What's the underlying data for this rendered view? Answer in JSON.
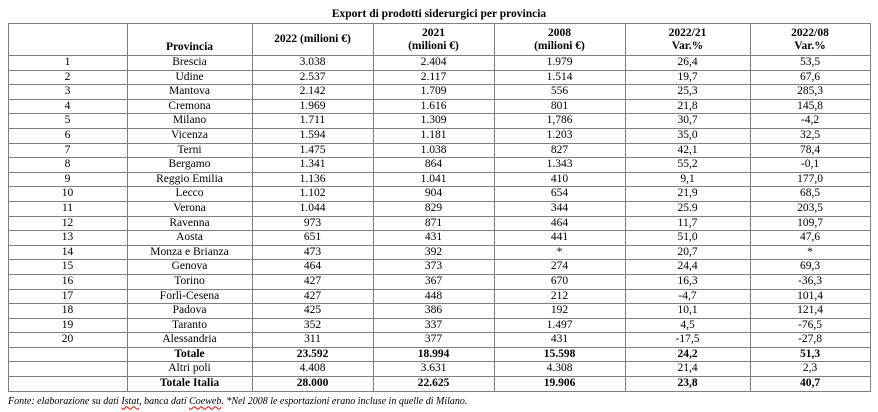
{
  "title": "Export di prodotti siderurgici per provincia",
  "colors": {
    "background": "#ffffff",
    "text": "#000000",
    "grid_border": "#808080",
    "spellcheck_underline": "#ff0000"
  },
  "table": {
    "headers": {
      "rank": "",
      "provincia": "Provincia",
      "y2022": "2022 (milioni €)",
      "y2021": [
        "2021",
        "(milioni €)"
      ],
      "y2008": [
        "2008",
        "(milioni €)"
      ],
      "var_2022_21": [
        "2022/21",
        "Var.%"
      ],
      "var_2022_08": [
        "2022/08",
        "Var.%"
      ]
    },
    "rows": [
      {
        "rank": "1",
        "provincia": "Brescia",
        "v2022": "3.038",
        "v2021": "2.404",
        "v2008": "1.979",
        "var2221": "26,4",
        "var2208": "53,5"
      },
      {
        "rank": "2",
        "provincia": "Udine",
        "v2022": "2.537",
        "v2021": "2.117",
        "v2008": "1.514",
        "var2221": "19,7",
        "var2208": "67,6"
      },
      {
        "rank": "3",
        "provincia": "Mantova",
        "v2022": "2.142",
        "v2021": "1.709",
        "v2008": "556",
        "var2221": "25,3",
        "var2208": "285,3"
      },
      {
        "rank": "4",
        "provincia": "Cremona",
        "v2022": "1.969",
        "v2021": "1.616",
        "v2008": "801",
        "var2221": "21,8",
        "var2208": "145,8"
      },
      {
        "rank": "5",
        "provincia": "Milano",
        "v2022": "1.711",
        "v2021": "1.309",
        "v2008": "1,786",
        "var2221": "30,7",
        "var2208": "-4,2"
      },
      {
        "rank": "6",
        "provincia": "Vicenza",
        "v2022": "1.594",
        "v2021": "1.181",
        "v2008": "1.203",
        "var2221": "35,0",
        "var2208": "32,5"
      },
      {
        "rank": "7",
        "provincia": "Terni",
        "v2022": "1.475",
        "v2021": "1.038",
        "v2008": "827",
        "var2221": "42,1",
        "var2208": "78,4"
      },
      {
        "rank": "8",
        "provincia": "Bergamo",
        "v2022": "1.341",
        "v2021": "864",
        "v2008": "1.343",
        "var2221": "55,2",
        "var2208": "-0,1"
      },
      {
        "rank": "9",
        "provincia": "Reggio Emilia",
        "v2022": "1.136",
        "v2021": "1.041",
        "v2008": "410",
        "var2221": "9,1",
        "var2208": "177,0"
      },
      {
        "rank": "10",
        "provincia": "Lecco",
        "v2022": "1.102",
        "v2021": "904",
        "v2008": "654",
        "var2221": "21,9",
        "var2208": "68,5"
      },
      {
        "rank": "11",
        "provincia": "Verona",
        "v2022": "1.044",
        "v2021": "829",
        "v2008": "344",
        "var2221": "25.9",
        "var2208": "203,5"
      },
      {
        "rank": "12",
        "provincia": "Ravenna",
        "v2022": "973",
        "v2021": "871",
        "v2008": "464",
        "var2221": "11,7",
        "var2208": "109,7"
      },
      {
        "rank": "13",
        "provincia": "Aosta",
        "v2022": "651",
        "v2021": "431",
        "v2008": "441",
        "var2221": "51,0",
        "var2208": "47,6"
      },
      {
        "rank": "14",
        "provincia": "Monza e Brianza",
        "v2022": "473",
        "v2021": "392",
        "v2008": "*",
        "var2221": "20,7",
        "var2208": "*"
      },
      {
        "rank": "15",
        "provincia": "Genova",
        "v2022": "464",
        "v2021": "373",
        "v2008": "274",
        "var2221": "24,4",
        "var2208": "69,3"
      },
      {
        "rank": "16",
        "provincia": "Torino",
        "v2022": "427",
        "v2021": "367",
        "v2008": "670",
        "var2221": "16,3",
        "var2208": "-36,3"
      },
      {
        "rank": "17",
        "provincia": "Forlì-Cesena",
        "v2022": "427",
        "v2021": "448",
        "v2008": "212",
        "var2221": "-4,7",
        "var2208": "101,4"
      },
      {
        "rank": "18",
        "provincia": "Padova",
        "v2022": "425",
        "v2021": "386",
        "v2008": "192",
        "var2221": "10,1",
        "var2208": "121,4"
      },
      {
        "rank": "19",
        "provincia": "Taranto",
        "v2022": "352",
        "v2021": "337",
        "v2008": "1.497",
        "var2221": "4,5",
        "var2208": "-76,5"
      },
      {
        "rank": "20",
        "provincia": "Alessandria",
        "v2022": "311",
        "v2021": "377",
        "v2008": "431",
        "var2221": "-17,5",
        "var2208": "-27,8"
      }
    ],
    "total_rows": [
      {
        "rank": "",
        "label": "Totale",
        "v2022": "23.592",
        "v2021": "18.994",
        "v2008": "15.598",
        "var2221": "24,2",
        "var2208": "51,3",
        "bold": true
      },
      {
        "rank": "",
        "label": "Altri poli",
        "v2022": "4.408",
        "v2021": "3.631",
        "v2008": "4.308",
        "var2221": "21,4",
        "var2208": "2,3",
        "bold": false
      },
      {
        "rank": "",
        "label": "Totale Italia",
        "v2022": "28.000",
        "v2021": "22.625",
        "v2008": "19.906",
        "var2221": "23,8",
        "var2208": "40,7",
        "bold": true
      }
    ]
  },
  "footer": {
    "prefix": "Fonte: elaborazione su dati ",
    "istat": "Istat",
    "mid": ", banca dati ",
    "coeweb": "Coeweb",
    "suffix": ". *Nel 2008 le esportazioni erano incluse in quelle di Milano."
  }
}
